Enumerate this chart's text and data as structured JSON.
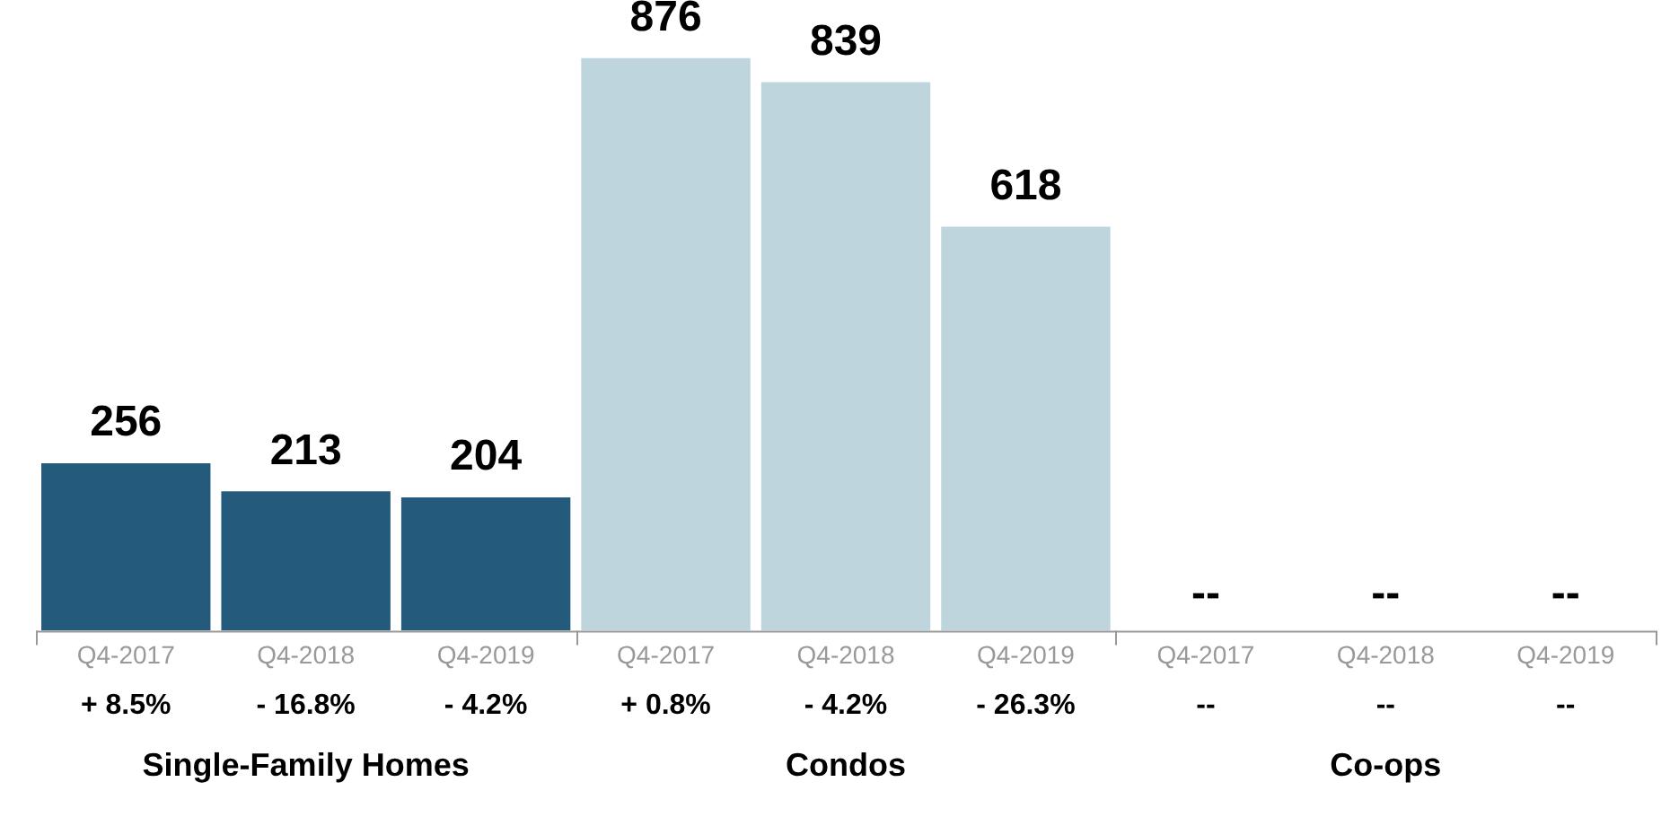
{
  "chart_data": {
    "type": "bar",
    "categories": [
      "Q4-2017",
      "Q4-2018",
      "Q4-2019",
      "Q4-2017",
      "Q4-2018",
      "Q4-2019",
      "Q4-2017",
      "Q4-2018",
      "Q4-2019"
    ],
    "values": [
      256,
      213,
      204,
      876,
      839,
      618,
      null,
      null,
      null
    ],
    "colors": [
      "#245a7b",
      "#245a7b",
      "#245a7b",
      "#bed5dd",
      "#bed5dd",
      "#bed5dd",
      "#bed5dd",
      "#bed5dd",
      "#bed5dd"
    ],
    "value_labels": [
      "256",
      "213",
      "204",
      "876",
      "839",
      "618",
      "--",
      "--",
      "--"
    ],
    "annotations": [
      "+ 8.5%",
      "- 16.8%",
      "- 4.2%",
      "+ 0.8%",
      "- 4.2%",
      "- 26.3%",
      "--",
      "--",
      "--",
      "Single-Family Homes",
      "Condos",
      "Co-ops"
    ],
    "tick_labels": "x",
    "grid": false,
    "legend": false
  }
}
